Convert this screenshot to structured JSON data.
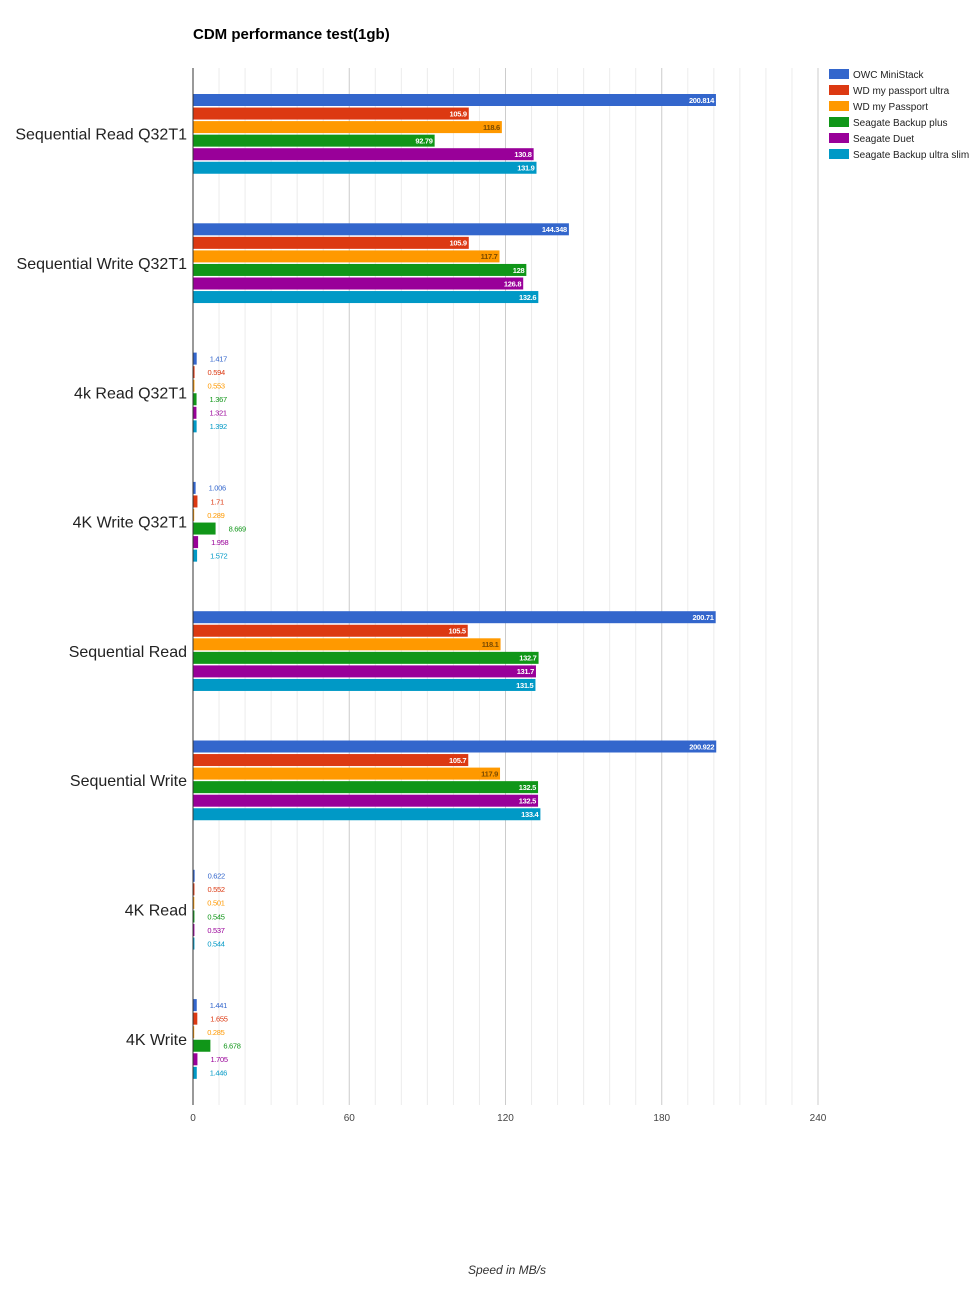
{
  "chart_data": {
    "type": "bar",
    "orientation": "horizontal",
    "title": "CDM performance test(1gb)",
    "xlabel": "Speed in MB/s",
    "ylabel": "",
    "xlim": [
      0,
      240
    ],
    "xticks": [
      "0",
      "60",
      "120",
      "180",
      "240"
    ],
    "grid": true,
    "legend_position": "top-right",
    "categories": [
      "Sequential Read Q32T1",
      "Sequential Write Q32T1",
      "4k Read Q32T1",
      "4K Write Q32T1",
      "Sequential Read",
      "Sequential Write",
      "4K Read",
      "4K Write"
    ],
    "series": [
      {
        "name": "OWC MiniStack",
        "color": "#3366cc",
        "values": [
          200.814,
          144.348,
          1.417,
          1.006,
          200.71,
          200.922,
          0.622,
          1.441
        ],
        "labels": [
          "200.814",
          "144.348",
          "1.417",
          "1.006",
          "200.71",
          "200.922",
          "0.622",
          "1.441"
        ]
      },
      {
        "name": "WD my passport ultra",
        "color": "#dc3912",
        "values": [
          105.9,
          105.9,
          0.594,
          1.71,
          105.5,
          105.7,
          0.552,
          1.655
        ],
        "labels": [
          "105.9",
          "105.9",
          "0.594",
          "1.71",
          "105.5",
          "105.7",
          "0.552",
          "1.655"
        ]
      },
      {
        "name": "WD my Passport",
        "color": "#ff9900",
        "values": [
          118.6,
          117.7,
          0.553,
          0.289,
          118.1,
          117.9,
          0.501,
          0.285
        ],
        "labels": [
          "118.6",
          "117.7",
          "0.553",
          "0.289",
          "118.1",
          "117.9",
          "0.501",
          "0.285"
        ]
      },
      {
        "name": "Seagate Backup plus",
        "color": "#109618",
        "values": [
          92.79,
          128,
          1.367,
          8.669,
          132.7,
          132.5,
          0.545,
          6.678
        ],
        "labels": [
          "92.79",
          "128",
          "1.367",
          "8.669",
          "132.7",
          "132.5",
          "0.545",
          "6.678"
        ]
      },
      {
        "name": "Seagate Duet",
        "color": "#990099",
        "values": [
          130.8,
          126.8,
          1.321,
          1.958,
          131.7,
          132.5,
          0.537,
          1.705
        ],
        "labels": [
          "130.8",
          "126.8",
          "1.321",
          "1.958",
          "131.7",
          "132.5",
          "0.537",
          "1.705"
        ]
      },
      {
        "name": "Seagate Backup ultra slim",
        "color": "#0099c6",
        "values": [
          131.9,
          132.6,
          1.392,
          1.572,
          131.5,
          133.4,
          0.544,
          1.446
        ],
        "labels": [
          "131.9",
          "132.6",
          "1.392",
          "1.572",
          "131.5",
          "133.4",
          "0.544",
          "1.446"
        ]
      }
    ]
  }
}
